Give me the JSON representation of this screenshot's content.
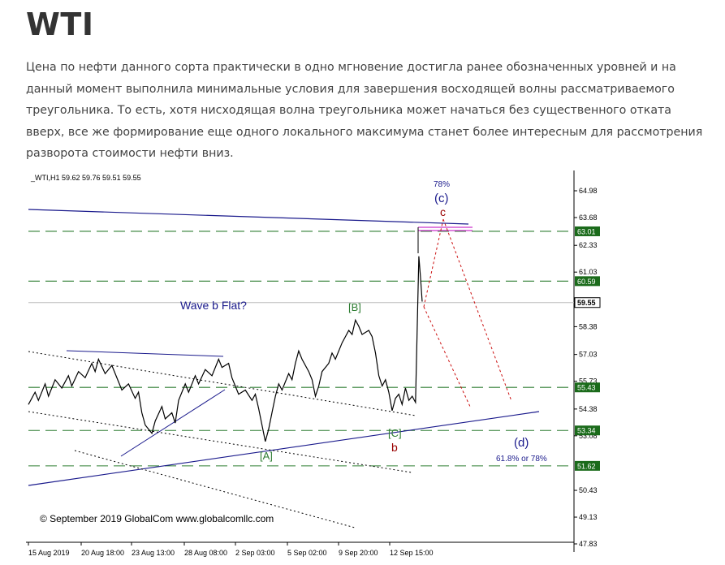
{
  "article": {
    "title": "WTI",
    "paragraph": "Цена по нефти данного сорта практически в одно мгновение достигла ранее обозначенных уровней и на данный момент выполнила минимальные условия для завершения восходящей волны рассматриваемого треугольника. То есть, хотя нисходящая волна треугольника может начаться без существенного отката вверх, все же формирование еще одного локального максимума станет более интересным для рассмотрения разворота стоимости нефти вниз."
  },
  "chart_data": {
    "type": "line",
    "header": "_WTI,H1  59.62 59.76 59.51 59.55",
    "ylim": [
      47.83,
      65.5
    ],
    "y_ticks": [
      "64.98",
      "63.68",
      "62.33",
      "61.03",
      "58.38",
      "57.03",
      "55.73",
      "54.38",
      "53.08",
      "50.43",
      "49.13",
      "47.83"
    ],
    "x_ticks": [
      "15 Aug 2019",
      "20 Aug 18:00",
      "23 Aug 13:00",
      "28 Aug 08:00",
      "2 Sep 03:00",
      "5 Sep 02:00",
      "9 Sep 20:00",
      "12 Sep 15:00"
    ],
    "levels": [
      {
        "label": "63.01",
        "value": 63.01
      },
      {
        "label": "60.59",
        "value": 60.59
      },
      {
        "label": "55.43",
        "value": 55.43
      },
      {
        "label": "53.34",
        "value": 53.34
      },
      {
        "label": "51.62",
        "value": 51.62
      }
    ],
    "current_price": {
      "label": "59.55",
      "value": 59.55
    },
    "series": [
      {
        "values": [
          [
            0,
            54.6
          ],
          [
            2,
            55.2
          ],
          [
            3,
            54.8
          ],
          [
            5,
            55.6
          ],
          [
            6,
            55.0
          ],
          [
            8,
            55.8
          ],
          [
            10,
            55.4
          ],
          [
            12,
            56.0
          ],
          [
            13,
            55.5
          ],
          [
            15,
            56.2
          ],
          [
            17,
            55.9
          ],
          [
            19,
            56.6
          ],
          [
            20,
            56.2
          ],
          [
            21,
            56.8
          ],
          [
            23,
            56.1
          ],
          [
            25,
            56.5
          ],
          [
            27,
            55.7
          ],
          [
            28,
            55.3
          ],
          [
            30,
            55.6
          ],
          [
            32,
            54.9
          ],
          [
            33,
            55.2
          ],
          [
            34,
            54.2
          ],
          [
            35,
            53.6
          ],
          [
            37,
            53.2
          ],
          [
            38,
            53.8
          ],
          [
            40,
            54.5
          ],
          [
            41,
            53.9
          ],
          [
            43,
            54.2
          ],
          [
            44,
            53.7
          ],
          [
            45,
            54.8
          ],
          [
            47,
            55.6
          ],
          [
            48,
            55.2
          ],
          [
            50,
            56.0
          ],
          [
            51,
            55.6
          ],
          [
            53,
            56.3
          ],
          [
            55,
            56.0
          ],
          [
            57,
            56.8
          ],
          [
            58,
            56.4
          ],
          [
            60,
            56.6
          ],
          [
            61,
            55.9
          ],
          [
            62,
            55.5
          ],
          [
            63,
            55.1
          ],
          [
            65,
            55.3
          ],
          [
            67,
            54.8
          ],
          [
            68,
            55.1
          ],
          [
            69,
            54.4
          ],
          [
            70,
            53.6
          ],
          [
            71,
            52.8
          ],
          [
            72,
            53.4
          ],
          [
            73,
            54.2
          ],
          [
            74,
            55.0
          ],
          [
            75,
            55.6
          ],
          [
            76,
            55.3
          ],
          [
            78,
            56.1
          ],
          [
            79,
            55.8
          ],
          [
            80,
            56.6
          ],
          [
            81,
            57.2
          ],
          [
            82,
            56.8
          ],
          [
            84,
            56.2
          ],
          [
            85,
            55.8
          ],
          [
            86,
            55.0
          ],
          [
            87,
            55.5
          ],
          [
            88,
            56.2
          ],
          [
            90,
            56.6
          ],
          [
            91,
            57.1
          ],
          [
            92,
            56.8
          ],
          [
            94,
            57.6
          ],
          [
            95,
            57.9
          ],
          [
            96,
            58.2
          ],
          [
            97,
            58.0
          ],
          [
            98,
            58.7
          ],
          [
            99,
            58.4
          ],
          [
            100,
            58.0
          ],
          [
            101,
            58.1
          ],
          [
            102,
            58.2
          ],
          [
            103,
            57.9
          ],
          [
            104,
            57.1
          ],
          [
            105,
            56.0
          ],
          [
            106,
            55.5
          ],
          [
            107,
            55.8
          ],
          [
            108,
            55.2
          ],
          [
            109,
            54.3
          ],
          [
            110,
            54.9
          ],
          [
            111,
            55.1
          ],
          [
            112,
            54.6
          ],
          [
            113,
            55.4
          ],
          [
            114,
            54.8
          ],
          [
            115,
            55.0
          ],
          [
            116,
            54.7
          ],
          [
            117,
            61.8
          ],
          [
            117.5,
            60.8
          ],
          [
            118,
            59.6
          ]
        ]
      }
    ],
    "labels": {
      "wave_b_flat": "Wave b Flat?",
      "B": "[B]",
      "A": "[A]",
      "C": "[C]",
      "b": "b",
      "c": "c",
      "c_paren": "(c)",
      "d_paren": "(d)",
      "pct_78": "78%",
      "fib_range": "61.8% or 78%",
      "copyright": "© September 2019 GlobalCom www.globalcomllc.com"
    },
    "colors": {
      "price": "#000000",
      "green_level": "#2e7d32",
      "blue_line": "#1a1a8c",
      "red_path": "#cc1111",
      "magenta": "#cc33cc",
      "wave_green": "#2e7d32",
      "wave_red": "#990000"
    }
  }
}
